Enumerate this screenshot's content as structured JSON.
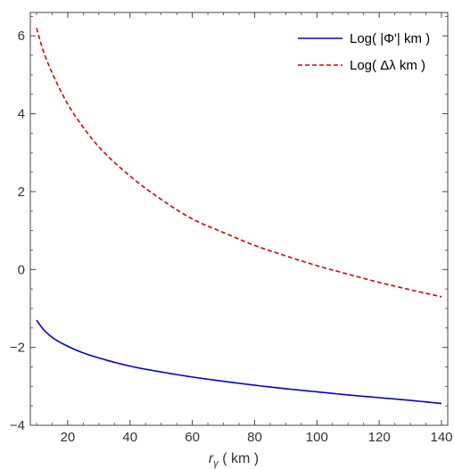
{
  "chart_data": {
    "type": "line",
    "title": "",
    "xlabel": {
      "main": "r",
      "sub": "γ",
      "unit": " ( km )"
    },
    "ylabel": "",
    "xlim": [
      8,
      142
    ],
    "ylim": [
      -4,
      6.6
    ],
    "xticks": [
      20,
      40,
      60,
      80,
      100,
      120,
      140
    ],
    "xticks_labeled": [
      20,
      40,
      60,
      80,
      100,
      120,
      140
    ],
    "yticks": [
      -4,
      -2,
      0,
      2,
      4,
      6
    ],
    "grid": false,
    "frame": "box",
    "legend_position": "top-right",
    "series": [
      {
        "name": "Log( |Φ'| km )",
        "color": "#0000dd",
        "style": "solid",
        "x": [
          10,
          12,
          15,
          20,
          25,
          30,
          40,
          50,
          60,
          70,
          80,
          90,
          100,
          110,
          120,
          130,
          140
        ],
        "y": [
          -1.3,
          -1.52,
          -1.74,
          -1.97,
          -2.14,
          -2.27,
          -2.48,
          -2.63,
          -2.76,
          -2.87,
          -2.97,
          -3.06,
          -3.14,
          -3.22,
          -3.29,
          -3.36,
          -3.44
        ]
      },
      {
        "name": "Log( Δλ km )",
        "color": "#dd0000",
        "style": "dashed",
        "x": [
          10,
          12,
          15,
          20,
          25,
          30,
          40,
          50,
          60,
          70,
          80,
          90,
          100,
          110,
          120,
          130,
          140
        ],
        "y": [
          6.2,
          5.65,
          5.05,
          4.25,
          3.65,
          3.15,
          2.4,
          1.8,
          1.3,
          0.95,
          0.62,
          0.35,
          0.1,
          -0.12,
          -0.33,
          -0.52,
          -0.7
        ]
      }
    ]
  }
}
